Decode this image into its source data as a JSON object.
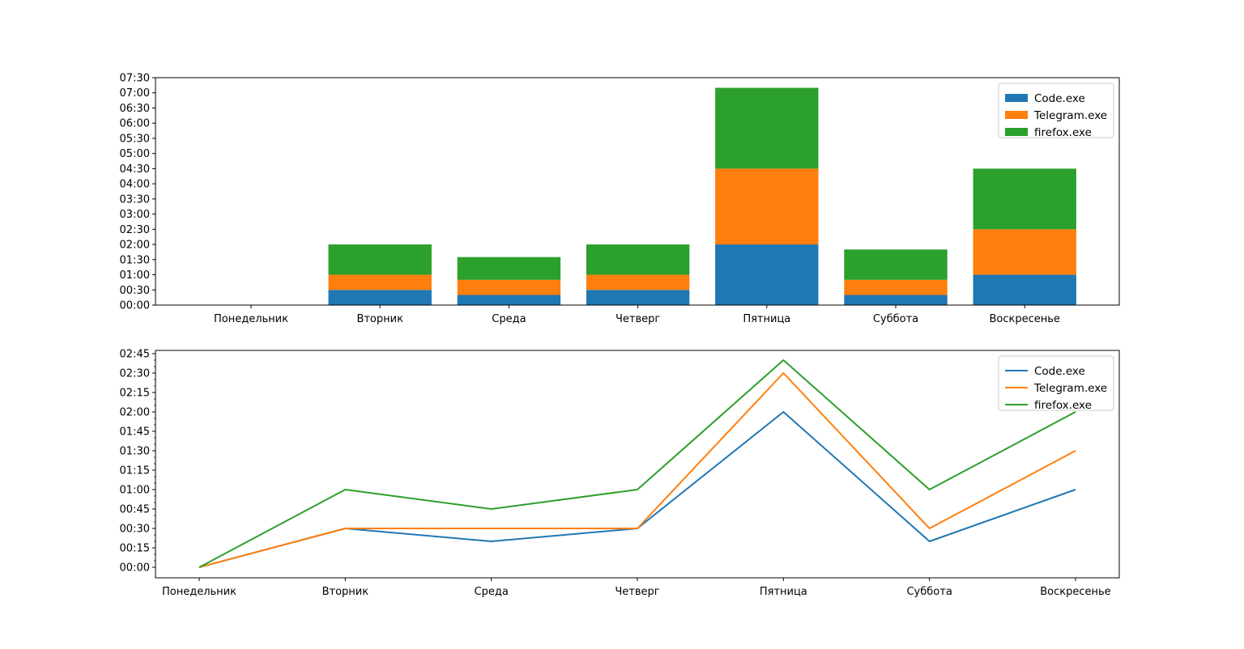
{
  "chart_data": [
    {
      "type": "bar",
      "stacked": true,
      "categories": [
        "Понедельник",
        "Вторник",
        "Среда",
        "Четверг",
        "Пятница",
        "Суббота",
        "Воскресенье"
      ],
      "y_unit": "minutes (shown as HH:MM)",
      "series": [
        {
          "name": "Code.exe",
          "color": "#1f77b4",
          "values": [
            0,
            30,
            20,
            30,
            120,
            20,
            60
          ]
        },
        {
          "name": "Telegram.exe",
          "color": "#ff7f0e",
          "values": [
            0,
            30,
            30,
            30,
            150,
            30,
            90
          ]
        },
        {
          "name": "firefox.exe",
          "color": "#2ca02c",
          "values": [
            0,
            60,
            45,
            60,
            160,
            60,
            120
          ]
        }
      ],
      "ylim": [
        0,
        450
      ],
      "y_ticks": [
        "00:00",
        "00:30",
        "01:00",
        "01:30",
        "02:00",
        "02:30",
        "03:00",
        "03:30",
        "04:00",
        "04:30",
        "05:00",
        "05:30",
        "06:00",
        "06:30",
        "07:00",
        "07:30"
      ],
      "legend_position": "upper-right",
      "grid": false
    },
    {
      "type": "line",
      "categories": [
        "Понедельник",
        "Вторник",
        "Среда",
        "Четверг",
        "Пятница",
        "Суббота",
        "Воскресенье"
      ],
      "y_unit": "minutes (shown as HH:MM)",
      "series": [
        {
          "name": "Code.exe",
          "color": "#1f77b4",
          "values": [
            0,
            30,
            20,
            30,
            120,
            20,
            60
          ]
        },
        {
          "name": "Telegram.exe",
          "color": "#ff7f0e",
          "values": [
            0,
            30,
            30,
            30,
            150,
            30,
            90
          ]
        },
        {
          "name": "firefox.exe",
          "color": "#2ca02c",
          "values": [
            0,
            60,
            45,
            60,
            160,
            60,
            120
          ]
        }
      ],
      "y_ticks": [
        "00:00",
        "00:15",
        "00:30",
        "00:45",
        "01:00",
        "01:15",
        "01:30",
        "01:45",
        "02:00",
        "02:15",
        "02:30",
        "02:45"
      ],
      "legend_position": "upper-right",
      "grid": false
    }
  ]
}
